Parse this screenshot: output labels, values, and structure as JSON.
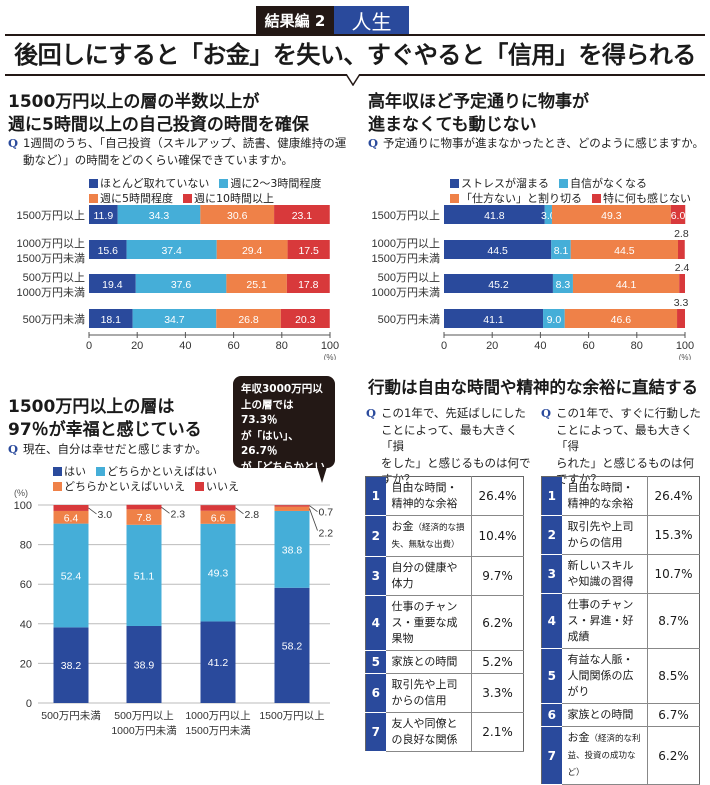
{
  "header": {
    "tag": "結果編 2",
    "category": "人生",
    "title": "後回しにすると「お金」を失い、すぐやると「信用」を得られる"
  },
  "colors": {
    "navy": "#2a4a9c",
    "sky": "#45aed8",
    "orange": "#ef8148",
    "red": "#d8393b",
    "dark": "#231815"
  },
  "section1": {
    "title_line1": "1500万円以上の層の半数以上が",
    "title_line2": "週に5時間以上の自己投資の時間を確保",
    "q_mark": "Q",
    "question_line1": "1週間のうち、「自己投資（スキルアップ、読書、健康維持の運",
    "question_line2": "動など）」の時間をどのくらい確保できていますか。"
  },
  "section2": {
    "title_line1": "高年収ほど予定通りに物事が",
    "title_line2": "進まなくても動じない",
    "q_mark": "Q",
    "question": "予定通りに物事が進まなかったとき、どのように感じますか。"
  },
  "section3": {
    "title_line1": "1500万円以上の層は",
    "title_line2": "97％が幸福と感じている",
    "q_mark": "Q",
    "question": "現在、自分は幸せだと感じますか。",
    "bubble_lines": [
      "年収3000万円以",
      "上の層では73.3％",
      "が「はい」、26.7％",
      "が「どちらかといえ",
      "ばはい」と回答"
    ]
  },
  "section4": {
    "title": "行動は自由な時間や精神的な余裕に直結する",
    "left": {
      "q_mark": "Q",
      "question_lines": [
        "この1年で、先延ばしにした",
        "ことによって、最も大きく「損",
        "をした」と感じるものは何で",
        "すか？"
      ],
      "rows": [
        {
          "rank": "1",
          "label": "自由な時間・精神的な余裕",
          "note": "",
          "value": "26.4%"
        },
        {
          "rank": "2",
          "label": "お金",
          "note": "（経済的な損失、無駄な出費）",
          "value": "10.4%"
        },
        {
          "rank": "3",
          "label": "自分の健康や体力",
          "note": "",
          "value": "9.7%"
        },
        {
          "rank": "4",
          "label": "仕事のチャンス・重要な成果物",
          "note": "",
          "value": "6.2%"
        },
        {
          "rank": "5",
          "label": "家族との時間",
          "note": "",
          "value": "5.2%"
        },
        {
          "rank": "6",
          "label": "取引先や上司からの信用",
          "note": "",
          "value": "3.3%"
        },
        {
          "rank": "7",
          "label": "友人や同僚との良好な関係",
          "note": "",
          "value": "2.1%"
        }
      ]
    },
    "right": {
      "q_mark": "Q",
      "question_lines": [
        "この1年で、すぐに行動した",
        "ことによって、最も大きく「得",
        "られた」と感じるものは何",
        "ですか？"
      ],
      "rows": [
        {
          "rank": "1",
          "label": "自由な時間・精神的な余裕",
          "note": "",
          "value": "26.4%"
        },
        {
          "rank": "2",
          "label": "取引先や上司からの信用",
          "note": "",
          "value": "15.3%"
        },
        {
          "rank": "3",
          "label": "新しいスキルや知識の習得",
          "note": "",
          "value": "10.7%"
        },
        {
          "rank": "4",
          "label": "仕事のチャンス・昇進・好成績",
          "note": "",
          "value": "8.7%"
        },
        {
          "rank": "5",
          "label": "有益な人脈・人間関係の広がり",
          "note": "",
          "value": "8.5%"
        },
        {
          "rank": "6",
          "label": "家族との時間",
          "note": "",
          "value": "6.7%"
        },
        {
          "rank": "7",
          "label": "お金",
          "note": "（経済的な利益、投資の成功など）",
          "value": "6.2%"
        }
      ]
    }
  },
  "chart_data": [
    {
      "type": "bar",
      "orientation": "horizontal-stacked",
      "title": "1500万円以上の層の半数以上が週に5時間以上の自己投資の時間を確保",
      "categories": [
        "1500万円以上",
        "1000万円以上\n1500万円未満",
        "500万円以上\n1000万円未満",
        "500万円未満"
      ],
      "series": [
        {
          "name": "ほとんど取れていない",
          "values": [
            11.9,
            15.6,
            19.4,
            18.1
          ]
        },
        {
          "name": "週に2～3時間程度",
          "values": [
            34.3,
            37.4,
            37.6,
            34.7
          ]
        },
        {
          "name": "週に5時間程度",
          "values": [
            30.6,
            29.4,
            25.1,
            26.8
          ]
        },
        {
          "name": "週に10時間以上",
          "values": [
            23.1,
            17.5,
            17.8,
            20.3
          ]
        }
      ],
      "xticks": [
        "0",
        "20",
        "40",
        "60",
        "80",
        "100"
      ],
      "xlabel": "(%)",
      "xlim": [
        0,
        100
      ],
      "legend": "top"
    },
    {
      "type": "bar",
      "orientation": "horizontal-stacked",
      "title": "高年収ほど予定通りに物事が進まなくても動じない",
      "categories": [
        "1500万円以上",
        "1000万円以上\n1500万円未満",
        "500万円以上\n1000万円未満",
        "500万円未満"
      ],
      "series": [
        {
          "name": "ストレスが溜まる",
          "values": [
            41.8,
            44.5,
            45.2,
            41.1
          ]
        },
        {
          "name": "自信がなくなる",
          "values": [
            3.0,
            8.1,
            8.3,
            9.0
          ]
        },
        {
          "name": "「仕方ない」と割り切る",
          "values": [
            49.3,
            44.5,
            44.1,
            46.6
          ]
        },
        {
          "name": "特に何も感じない",
          "values": [
            6.0,
            2.8,
            2.4,
            3.3
          ]
        }
      ],
      "xticks": [
        "0",
        "20",
        "40",
        "60",
        "80",
        "100"
      ],
      "xlabel": "(%)",
      "xlim": [
        0,
        100
      ],
      "legend": "top"
    },
    {
      "type": "bar",
      "orientation": "vertical-stacked",
      "title": "1500万円以上の層は97％が幸福と感じている",
      "categories": [
        "500万円未満",
        "500万円以上\n1000万円未満",
        "1000万円以上\n1500万円未満",
        "1500万円以上"
      ],
      "series": [
        {
          "name": "はい",
          "values": [
            38.2,
            38.9,
            41.2,
            58.2
          ]
        },
        {
          "name": "どちらかといえばはい",
          "values": [
            52.4,
            51.1,
            49.3,
            38.8
          ]
        },
        {
          "name": "どちらかといえばいいえ",
          "values": [
            6.4,
            7.8,
            6.6,
            2.2
          ]
        },
        {
          "name": "いいえ",
          "values": [
            3.0,
            2.3,
            2.8,
            0.7
          ]
        }
      ],
      "yticks": [
        "0",
        "20",
        "40",
        "60",
        "80",
        "100"
      ],
      "ylabel": "(%)",
      "ylim": [
        0,
        100
      ],
      "grid": true,
      "legend": "top"
    }
  ]
}
